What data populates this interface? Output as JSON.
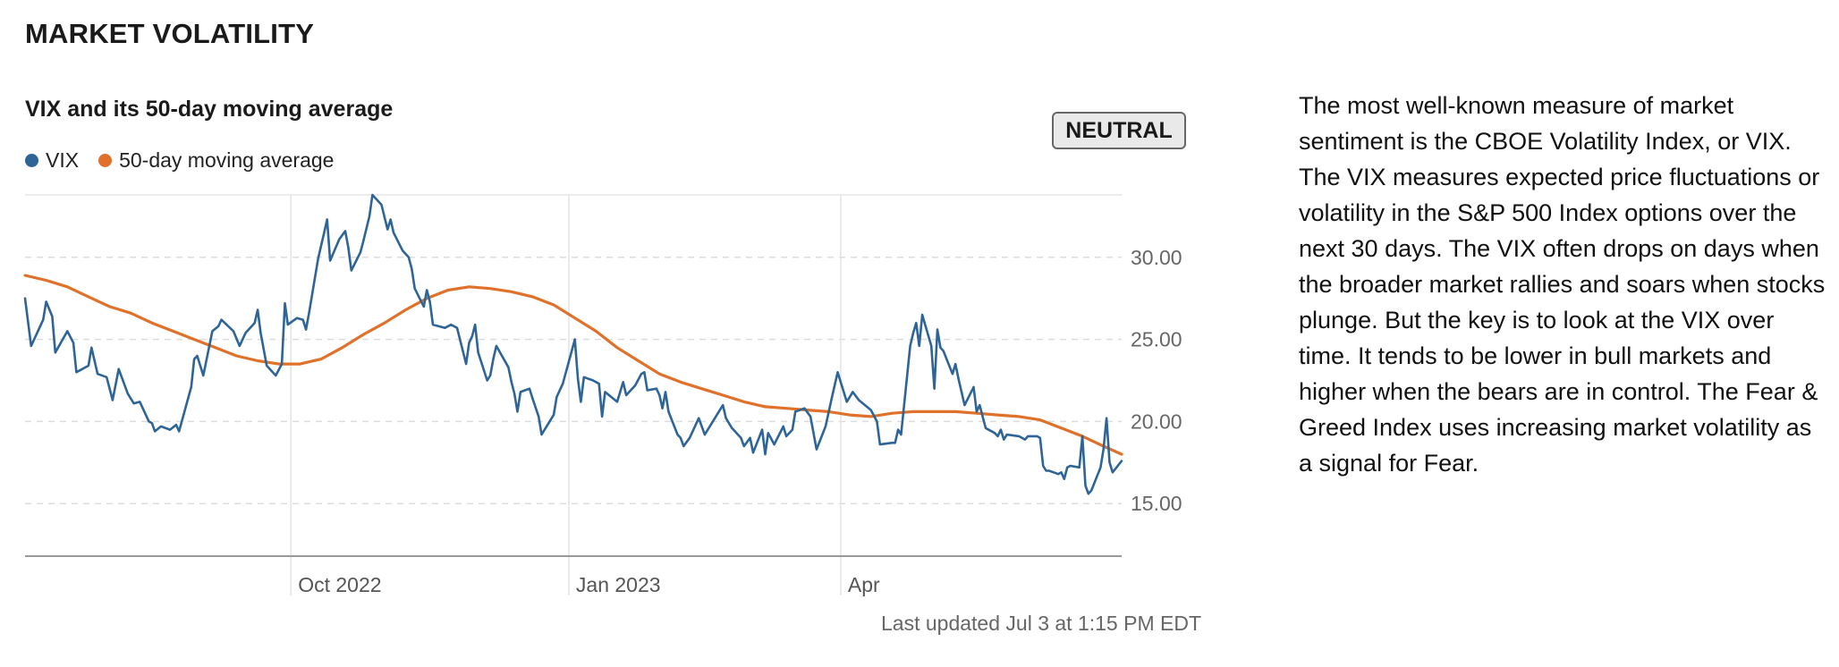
{
  "header": {
    "title": "MARKET VOLATILITY"
  },
  "chart_header": {
    "title": "VIX and its 50-day moving average",
    "badge": "NEUTRAL"
  },
  "legend": [
    {
      "label": "VIX",
      "color": "#2e6596"
    },
    {
      "label": "50-day moving average",
      "color": "#e0712b"
    }
  ],
  "footer": {
    "updated": "Last updated Jul 3 at 1:15 PM EDT"
  },
  "description": "The most well-known measure of market sentiment is the CBOE Volatility Index, or VIX. The VIX measures expected price fluctuations or volatility in the S&P 500 Index options over the next 30 days. The VIX often drops on days when the broader market rallies and soars when stocks plunge. But the key is to look at the VIX over time. It tends to be lower in bull markets and higher when the bears are in control. The Fear & Greed Index uses increasing market volatility as a signal for Fear.",
  "chart_data": {
    "type": "line",
    "title": "VIX and its 50-day moving average",
    "x_type": "date",
    "xlim": [
      "2022-07-05",
      "2023-07-03"
    ],
    "ylim": [
      11.8,
      33.8
    ],
    "y_ticks": [
      15,
      20,
      25,
      30
    ],
    "y_tick_labels": [
      "15.00",
      "20.00",
      "25.00",
      "30.00"
    ],
    "x_ticks": [
      {
        "date": "2022-10-01",
        "label": "Oct 2022"
      },
      {
        "date": "2023-01-01",
        "label": "Jan 2023"
      },
      {
        "date": "2023-04-01",
        "label": "Apr"
      }
    ],
    "grid": {
      "horizontal": "dashed",
      "vertical": "solid"
    },
    "legend_position": "top-left",
    "series": [
      {
        "name": "VIX",
        "color": "#2e6596",
        "points": [
          [
            "2022-07-05",
            27.5
          ],
          [
            "2022-07-07",
            24.6
          ],
          [
            "2022-07-11",
            26.2
          ],
          [
            "2022-07-12",
            27.3
          ],
          [
            "2022-07-14",
            26.4
          ],
          [
            "2022-07-15",
            24.2
          ],
          [
            "2022-07-19",
            25.5
          ],
          [
            "2022-07-21",
            24.8
          ],
          [
            "2022-07-22",
            23.0
          ],
          [
            "2022-07-26",
            23.4
          ],
          [
            "2022-07-27",
            24.5
          ],
          [
            "2022-07-29",
            22.9
          ],
          [
            "2022-08-01",
            22.7
          ],
          [
            "2022-08-03",
            21.3
          ],
          [
            "2022-08-05",
            23.2
          ],
          [
            "2022-08-08",
            21.7
          ],
          [
            "2022-08-10",
            21.1
          ],
          [
            "2022-08-12",
            21.2
          ],
          [
            "2022-08-15",
            20.0
          ],
          [
            "2022-08-16",
            19.9
          ],
          [
            "2022-08-17",
            19.4
          ],
          [
            "2022-08-19",
            19.7
          ],
          [
            "2022-08-22",
            19.5
          ],
          [
            "2022-08-24",
            19.8
          ],
          [
            "2022-08-25",
            19.4
          ],
          [
            "2022-08-29",
            22.1
          ],
          [
            "2022-08-30",
            23.8
          ],
          [
            "2022-08-31",
            24.0
          ],
          [
            "2022-09-02",
            22.8
          ],
          [
            "2022-09-05",
            25.5
          ],
          [
            "2022-09-07",
            25.8
          ],
          [
            "2022-09-08",
            26.2
          ],
          [
            "2022-09-12",
            25.5
          ],
          [
            "2022-09-14",
            24.6
          ],
          [
            "2022-09-16",
            25.4
          ],
          [
            "2022-09-19",
            26.0
          ],
          [
            "2022-09-20",
            26.8
          ],
          [
            "2022-09-21",
            25.4
          ],
          [
            "2022-09-23",
            23.4
          ],
          [
            "2022-09-26",
            22.8
          ],
          [
            "2022-09-28",
            23.5
          ],
          [
            "2022-09-29",
            27.2
          ],
          [
            "2022-09-30",
            25.9
          ],
          [
            "2022-10-03",
            26.3
          ],
          [
            "2022-10-05",
            26.2
          ],
          [
            "2022-10-06",
            25.6
          ],
          [
            "2022-10-07",
            26.6
          ],
          [
            "2022-10-10",
            29.9
          ],
          [
            "2022-10-12",
            31.5
          ],
          [
            "2022-10-13",
            32.3
          ],
          [
            "2022-10-14",
            29.8
          ],
          [
            "2022-10-17",
            31.1
          ],
          [
            "2022-10-19",
            31.6
          ],
          [
            "2022-10-20",
            30.6
          ],
          [
            "2022-10-21",
            29.2
          ],
          [
            "2022-10-24",
            30.3
          ],
          [
            "2022-10-25",
            31.0
          ],
          [
            "2022-10-27",
            32.5
          ],
          [
            "2022-10-28",
            33.8
          ],
          [
            "2022-10-31",
            33.2
          ],
          [
            "2022-11-02",
            31.7
          ],
          [
            "2022-11-03",
            32.3
          ],
          [
            "2022-11-04",
            31.5
          ],
          [
            "2022-11-07",
            30.4
          ],
          [
            "2022-11-09",
            30.0
          ],
          [
            "2022-11-10",
            29.3
          ],
          [
            "2022-11-11",
            28.1
          ],
          [
            "2022-11-14",
            27.0
          ],
          [
            "2022-11-15",
            28.0
          ],
          [
            "2022-11-16",
            27.3
          ],
          [
            "2022-11-17",
            25.9
          ],
          [
            "2022-11-21",
            25.7
          ],
          [
            "2022-11-23",
            25.9
          ],
          [
            "2022-11-25",
            25.7
          ],
          [
            "2022-11-28",
            23.5
          ],
          [
            "2022-11-29",
            24.8
          ],
          [
            "2022-11-30",
            25.2
          ],
          [
            "2022-12-01",
            25.9
          ],
          [
            "2022-12-02",
            24.2
          ],
          [
            "2022-12-05",
            22.5
          ],
          [
            "2022-12-06",
            22.8
          ],
          [
            "2022-12-07",
            23.8
          ],
          [
            "2022-12-08",
            24.6
          ],
          [
            "2022-12-12",
            23.3
          ],
          [
            "2022-12-13",
            22.4
          ],
          [
            "2022-12-14",
            21.7
          ],
          [
            "2022-12-15",
            20.6
          ],
          [
            "2022-12-16",
            21.8
          ],
          [
            "2022-12-19",
            22.0
          ],
          [
            "2022-12-20",
            21.4
          ],
          [
            "2022-12-22",
            20.3
          ],
          [
            "2022-12-23",
            19.2
          ],
          [
            "2022-12-27",
            20.4
          ],
          [
            "2022-12-28",
            21.5
          ],
          [
            "2022-12-30",
            22.3
          ],
          [
            "2023-01-03",
            25.0
          ],
          [
            "2023-01-04",
            22.6
          ],
          [
            "2023-01-05",
            21.2
          ],
          [
            "2023-01-06",
            22.7
          ],
          [
            "2023-01-09",
            22.5
          ],
          [
            "2023-01-11",
            22.3
          ],
          [
            "2023-01-12",
            20.3
          ],
          [
            "2023-01-13",
            21.8
          ],
          [
            "2023-01-17",
            21.2
          ],
          [
            "2023-01-19",
            22.4
          ],
          [
            "2023-01-20",
            21.6
          ],
          [
            "2023-01-23",
            22.2
          ],
          [
            "2023-01-25",
            22.9
          ],
          [
            "2023-01-26",
            23.0
          ],
          [
            "2023-01-27",
            21.9
          ],
          [
            "2023-01-30",
            22.0
          ],
          [
            "2023-01-31",
            21.6
          ],
          [
            "2023-02-01",
            20.8
          ],
          [
            "2023-02-02",
            21.8
          ],
          [
            "2023-02-03",
            20.6
          ],
          [
            "2023-02-06",
            19.2
          ],
          [
            "2023-02-07",
            19.0
          ],
          [
            "2023-02-08",
            18.5
          ],
          [
            "2023-02-10",
            19.0
          ],
          [
            "2023-02-13",
            20.2
          ],
          [
            "2023-02-15",
            19.2
          ],
          [
            "2023-02-16",
            19.5
          ],
          [
            "2023-02-17",
            19.8
          ],
          [
            "2023-02-21",
            21.0
          ],
          [
            "2023-02-22",
            20.2
          ],
          [
            "2023-02-24",
            19.6
          ],
          [
            "2023-02-27",
            19.0
          ],
          [
            "2023-02-28",
            18.5
          ],
          [
            "2023-03-02",
            19.0
          ],
          [
            "2023-03-03",
            18.1
          ],
          [
            "2023-03-06",
            19.5
          ],
          [
            "2023-03-07",
            18.0
          ],
          [
            "2023-03-08",
            19.3
          ],
          [
            "2023-03-10",
            18.6
          ],
          [
            "2023-03-13",
            19.7
          ],
          [
            "2023-03-14",
            19.1
          ],
          [
            "2023-03-16",
            19.5
          ],
          [
            "2023-03-17",
            20.6
          ],
          [
            "2023-03-20",
            20.8
          ],
          [
            "2023-03-22",
            20.3
          ],
          [
            "2023-03-24",
            18.3
          ],
          [
            "2023-03-27",
            19.7
          ],
          [
            "2023-03-29",
            21.4
          ],
          [
            "2023-03-31",
            23.0
          ],
          [
            "2023-04-03",
            21.2
          ],
          [
            "2023-04-05",
            21.8
          ],
          [
            "2023-04-07",
            21.3
          ],
          [
            "2023-04-11",
            20.7
          ],
          [
            "2023-04-13",
            20.0
          ],
          [
            "2023-04-14",
            18.6
          ],
          [
            "2023-04-18",
            18.7
          ],
          [
            "2023-04-19",
            18.7
          ],
          [
            "2023-04-20",
            19.5
          ],
          [
            "2023-04-21",
            19.2
          ],
          [
            "2023-04-24",
            24.6
          ],
          [
            "2023-04-25",
            25.4
          ],
          [
            "2023-04-26",
            26.0
          ],
          [
            "2023-04-27",
            24.6
          ],
          [
            "2023-04-28",
            26.5
          ],
          [
            "2023-05-01",
            24.6
          ],
          [
            "2023-05-02",
            22.0
          ],
          [
            "2023-05-03",
            25.6
          ],
          [
            "2023-05-04",
            24.5
          ],
          [
            "2023-05-05",
            24.3
          ],
          [
            "2023-05-08",
            22.9
          ],
          [
            "2023-05-09",
            23.5
          ],
          [
            "2023-05-10",
            22.6
          ],
          [
            "2023-05-12",
            21.0
          ],
          [
            "2023-05-15",
            22.1
          ],
          [
            "2023-05-16",
            20.6
          ],
          [
            "2023-05-17",
            21.0
          ],
          [
            "2023-05-18",
            20.3
          ],
          [
            "2023-05-19",
            19.6
          ],
          [
            "2023-05-22",
            19.3
          ],
          [
            "2023-05-23",
            19.1
          ],
          [
            "2023-05-24",
            19.5
          ],
          [
            "2023-05-25",
            18.9
          ],
          [
            "2023-05-26",
            19.2
          ],
          [
            "2023-05-30",
            19.1
          ],
          [
            "2023-06-01",
            18.9
          ],
          [
            "2023-06-02",
            19.1
          ],
          [
            "2023-06-05",
            19.1
          ],
          [
            "2023-06-06",
            19.0
          ],
          [
            "2023-06-07",
            17.3
          ],
          [
            "2023-06-08",
            17.0
          ],
          [
            "2023-06-09",
            17.0
          ],
          [
            "2023-06-12",
            16.8
          ],
          [
            "2023-06-13",
            16.9
          ],
          [
            "2023-06-14",
            16.5
          ],
          [
            "2023-06-15",
            17.2
          ],
          [
            "2023-06-16",
            17.3
          ],
          [
            "2023-06-19",
            17.2
          ],
          [
            "2023-06-20",
            19.1
          ],
          [
            "2023-06-21",
            16.1
          ],
          [
            "2023-06-22",
            15.6
          ],
          [
            "2023-06-23",
            15.8
          ],
          [
            "2023-06-26",
            17.2
          ],
          [
            "2023-06-27",
            18.3
          ],
          [
            "2023-06-28",
            20.2
          ],
          [
            "2023-06-29",
            17.5
          ],
          [
            "2023-06-30",
            16.9
          ],
          [
            "2023-07-03",
            17.6
          ]
        ]
      },
      {
        "name": "50-day moving average",
        "color": "#e0712b",
        "points": [
          [
            "2022-07-05",
            28.9
          ],
          [
            "2022-07-12",
            28.6
          ],
          [
            "2022-07-19",
            28.2
          ],
          [
            "2022-07-26",
            27.6
          ],
          [
            "2022-08-02",
            27.0
          ],
          [
            "2022-08-09",
            26.6
          ],
          [
            "2022-08-16",
            26.0
          ],
          [
            "2022-08-23",
            25.5
          ],
          [
            "2022-08-30",
            25.0
          ],
          [
            "2022-09-06",
            24.5
          ],
          [
            "2022-09-13",
            24.0
          ],
          [
            "2022-09-20",
            23.7
          ],
          [
            "2022-09-27",
            23.5
          ],
          [
            "2022-10-04",
            23.5
          ],
          [
            "2022-10-11",
            23.8
          ],
          [
            "2022-10-18",
            24.5
          ],
          [
            "2022-10-25",
            25.3
          ],
          [
            "2022-11-01",
            26.0
          ],
          [
            "2022-11-08",
            26.8
          ],
          [
            "2022-11-15",
            27.5
          ],
          [
            "2022-11-22",
            28.0
          ],
          [
            "2022-11-29",
            28.2
          ],
          [
            "2022-12-06",
            28.1
          ],
          [
            "2022-12-13",
            27.9
          ],
          [
            "2022-12-20",
            27.6
          ],
          [
            "2022-12-27",
            27.1
          ],
          [
            "2023-01-03",
            26.3
          ],
          [
            "2023-01-10",
            25.5
          ],
          [
            "2023-01-17",
            24.5
          ],
          [
            "2023-01-24",
            23.7
          ],
          [
            "2023-01-31",
            22.9
          ],
          [
            "2023-02-07",
            22.4
          ],
          [
            "2023-02-14",
            22.0
          ],
          [
            "2023-02-21",
            21.6
          ],
          [
            "2023-02-28",
            21.2
          ],
          [
            "2023-03-07",
            20.9
          ],
          [
            "2023-03-14",
            20.8
          ],
          [
            "2023-03-21",
            20.7
          ],
          [
            "2023-03-28",
            20.6
          ],
          [
            "2023-04-04",
            20.4
          ],
          [
            "2023-04-11",
            20.3
          ],
          [
            "2023-04-18",
            20.5
          ],
          [
            "2023-04-25",
            20.6
          ],
          [
            "2023-05-02",
            20.6
          ],
          [
            "2023-05-09",
            20.6
          ],
          [
            "2023-05-16",
            20.5
          ],
          [
            "2023-05-23",
            20.4
          ],
          [
            "2023-05-30",
            20.3
          ],
          [
            "2023-06-06",
            20.1
          ],
          [
            "2023-06-13",
            19.6
          ],
          [
            "2023-06-20",
            19.1
          ],
          [
            "2023-06-27",
            18.5
          ],
          [
            "2023-07-03",
            18.0
          ]
        ]
      }
    ]
  }
}
